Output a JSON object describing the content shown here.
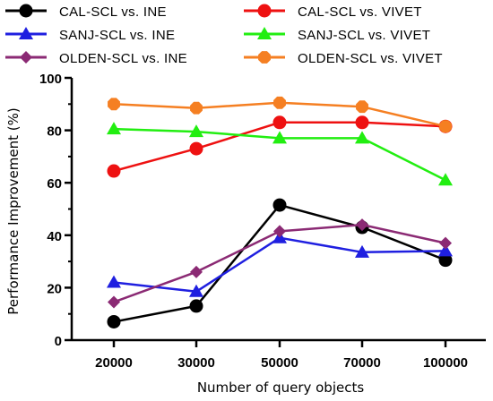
{
  "chart_data": {
    "type": "line",
    "x": [
      "20000",
      "30000",
      "50000",
      "70000",
      "100000"
    ],
    "xlabel": "Number of query objects",
    "ylabel": "Performance Improvement (%)",
    "ylim": [
      0,
      100
    ],
    "yticks": [
      "0",
      "20",
      "40",
      "60",
      "80",
      "100"
    ],
    "grid": false,
    "legend_position": "top",
    "series": [
      {
        "name": "CAL-SCL vs. INE",
        "color": "#000000",
        "marker": "circle",
        "values": [
          7,
          13,
          51.5,
          43,
          30.5
        ]
      },
      {
        "name": "SANJ-SCL vs. INE",
        "color": "#1f1fe0",
        "marker": "triangle",
        "values": [
          22,
          18.5,
          39,
          33.5,
          34
        ]
      },
      {
        "name": "OLDEN-SCL vs. INE",
        "color": "#8b2a74",
        "marker": "diamond",
        "values": [
          14.5,
          26,
          41.5,
          44,
          37
        ]
      },
      {
        "name": "CAL-SCL vs. VIVET",
        "color": "#ee1111",
        "marker": "circle",
        "values": [
          64.5,
          73,
          83,
          83,
          81.5
        ]
      },
      {
        "name": "SANJ-SCL vs. VIVET",
        "color": "#22ee11",
        "marker": "triangle",
        "values": [
          80.5,
          79.5,
          77,
          77,
          61
        ]
      },
      {
        "name": "OLDEN-SCL vs. VIVET",
        "color": "#f57f22",
        "marker": "octagon",
        "values": [
          90,
          88.5,
          90.5,
          89,
          81.5
        ]
      }
    ]
  }
}
